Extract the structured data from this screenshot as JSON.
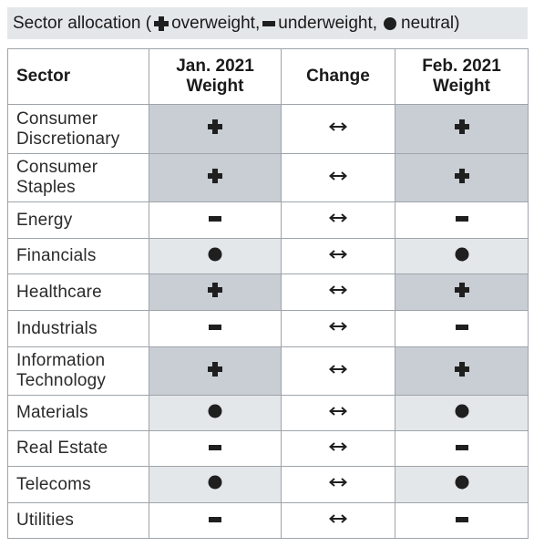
{
  "title": {
    "prefix": "Sector allocation (",
    "overweight_label": "overweight,",
    "underweight_label": "underweight,",
    "neutral_label": "neutral)"
  },
  "headers": {
    "sector": "Sector",
    "jan_line1": "Jan. 2021",
    "jan_line2": "Weight",
    "change": "Change",
    "feb_line1": "Feb. 2021",
    "feb_line2": "Weight"
  },
  "rows": [
    {
      "line1": "Consumer",
      "line2": "Discretionary",
      "jan": "overweight-icon",
      "change": "no-change-icon",
      "feb": "overweight-icon"
    },
    {
      "line1": "Consumer",
      "line2": "Staples",
      "jan": "overweight-icon",
      "change": "no-change-icon",
      "feb": "overweight-icon"
    },
    {
      "line1": "Energy",
      "line2": "",
      "jan": "underweight-icon",
      "change": "no-change-icon",
      "feb": "underweight-icon"
    },
    {
      "line1": "Financials",
      "line2": "",
      "jan": "neutral-icon",
      "change": "no-change-icon",
      "feb": "neutral-icon"
    },
    {
      "line1": "Healthcare",
      "line2": "",
      "jan": "overweight-icon",
      "change": "no-change-icon",
      "feb": "overweight-icon"
    },
    {
      "line1": "Industrials",
      "line2": "",
      "jan": "underweight-icon",
      "change": "no-change-icon",
      "feb": "underweight-icon"
    },
    {
      "line1": "Information",
      "line2": "Technology",
      "jan": "overweight-icon",
      "change": "no-change-icon",
      "feb": "overweight-icon"
    },
    {
      "line1": "Materials",
      "line2": "",
      "jan": "neutral-icon",
      "change": "no-change-icon",
      "feb": "neutral-icon"
    },
    {
      "line1": "Real Estate",
      "line2": "",
      "jan": "underweight-icon",
      "change": "no-change-icon",
      "feb": "underweight-icon"
    },
    {
      "line1": "Telecoms",
      "line2": "",
      "jan": "neutral-icon",
      "change": "no-change-icon",
      "feb": "neutral-icon"
    },
    {
      "line1": "Utilities",
      "line2": "",
      "jan": "underweight-icon",
      "change": "no-change-icon",
      "feb": "underweight-icon"
    }
  ],
  "colors": {
    "overweight_fill": "#c8ced3",
    "neutral_fill": "#e4e7ea",
    "underweight_fill": "#ffffff",
    "symbol": "#1f1f1f"
  }
}
